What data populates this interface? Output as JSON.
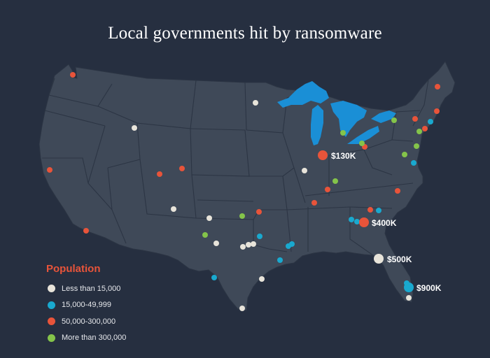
{
  "title": "Local governments hit by ransomware",
  "colors": {
    "background": "#262f40",
    "land": "#3f4958",
    "border": "#2c3544",
    "water": "#1a8fd6",
    "less_than_15000": "#e8e4da",
    "from_15000_to_49999": "#19a9cf",
    "from_50000_to_300000": "#e8543a",
    "more_than_300000": "#84c44a"
  },
  "legend": {
    "title": "Population",
    "items": [
      {
        "label": "Less than 15,000",
        "color": "#e8e4da"
      },
      {
        "label": "15,000-49,999",
        "color": "#19a9cf"
      },
      {
        "label": "50,000-300,000",
        "color": "#e8543a"
      },
      {
        "label": "More than 300,000",
        "color": "#84c44a"
      }
    ]
  },
  "callouts": [
    {
      "label": "$130K",
      "category": "50,000-300,000"
    },
    {
      "label": "$400K",
      "category": "50,000-300,000"
    },
    {
      "label": "$500K",
      "category": "Less than 15,000"
    },
    {
      "label": "$900K",
      "category": "15,000-49,999"
    }
  ]
}
